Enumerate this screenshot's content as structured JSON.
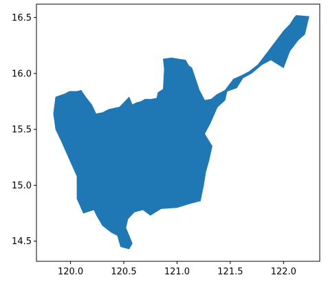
{
  "chart_data": {
    "type": "map",
    "title": "",
    "xlabel": "",
    "ylabel": "",
    "xlim": [
      119.68,
      122.34
    ],
    "ylim": [
      14.32,
      16.62
    ],
    "x_ticks": [
      120.0,
      120.5,
      121.0,
      121.5,
      122.0
    ],
    "x_tick_labels": [
      "120.0",
      "120.5",
      "121.0",
      "121.5",
      "122.0"
    ],
    "y_ticks": [
      14.5,
      15.0,
      15.5,
      16.0,
      16.5
    ],
    "y_tick_labels": [
      "14.5",
      "15.0",
      "15.5",
      "16.0",
      "16.5"
    ],
    "grid": false,
    "fill_color": "#1f77b4",
    "region_outline": [
      [
        119.86,
        15.79
      ],
      [
        119.95,
        15.82
      ],
      [
        119.99,
        15.84
      ],
      [
        120.06,
        15.84
      ],
      [
        120.1,
        15.85
      ],
      [
        120.12,
        15.82
      ],
      [
        120.15,
        15.78
      ],
      [
        120.2,
        15.72
      ],
      [
        120.24,
        15.64
      ],
      [
        120.3,
        15.65
      ],
      [
        120.36,
        15.68
      ],
      [
        120.46,
        15.7
      ],
      [
        120.5,
        15.74
      ],
      [
        120.55,
        15.79
      ],
      [
        120.58,
        15.72
      ],
      [
        120.62,
        15.74
      ],
      [
        120.66,
        15.75
      ],
      [
        120.7,
        15.77
      ],
      [
        120.76,
        15.77
      ],
      [
        120.81,
        15.78
      ],
      [
        120.82,
        15.83
      ],
      [
        120.87,
        15.86
      ],
      [
        120.88,
        16.04
      ],
      [
        120.87,
        16.13
      ],
      [
        120.95,
        16.14
      ],
      [
        121.08,
        16.12
      ],
      [
        121.11,
        16.07
      ],
      [
        121.14,
        16.05
      ],
      [
        121.21,
        15.85
      ],
      [
        121.26,
        15.76
      ],
      [
        121.32,
        15.77
      ],
      [
        121.37,
        15.81
      ],
      [
        121.45,
        15.85
      ],
      [
        121.53,
        15.95
      ],
      [
        121.6,
        15.98
      ],
      [
        121.68,
        16.02
      ],
      [
        121.76,
        16.08
      ],
      [
        121.84,
        16.18
      ],
      [
        121.92,
        16.28
      ],
      [
        122.0,
        16.38
      ],
      [
        122.06,
        16.44
      ],
      [
        122.1,
        16.5
      ],
      [
        122.12,
        16.52
      ],
      [
        122.24,
        16.51
      ],
      [
        122.22,
        16.43
      ],
      [
        122.2,
        16.35
      ],
      [
        122.14,
        16.3
      ],
      [
        122.06,
        16.2
      ],
      [
        122.0,
        16.05
      ],
      [
        121.88,
        16.12
      ],
      [
        121.8,
        16.08
      ],
      [
        121.7,
        16.0
      ],
      [
        121.62,
        15.96
      ],
      [
        121.56,
        15.87
      ],
      [
        121.47,
        15.84
      ],
      [
        121.45,
        15.76
      ],
      [
        121.38,
        15.7
      ],
      [
        121.31,
        15.55
      ],
      [
        121.26,
        15.46
      ],
      [
        121.33,
        15.35
      ],
      [
        121.3,
        15.22
      ],
      [
        121.27,
        15.12
      ],
      [
        121.25,
        15.0
      ],
      [
        121.22,
        14.86
      ],
      [
        121.14,
        14.84
      ],
      [
        121.0,
        14.8
      ],
      [
        120.85,
        14.79
      ],
      [
        120.75,
        14.73
      ],
      [
        120.68,
        14.78
      ],
      [
        120.6,
        14.76
      ],
      [
        120.54,
        14.7
      ],
      [
        120.52,
        14.62
      ],
      [
        120.58,
        14.48
      ],
      [
        120.55,
        14.43
      ],
      [
        120.47,
        14.45
      ],
      [
        120.44,
        14.55
      ],
      [
        120.38,
        14.58
      ],
      [
        120.3,
        14.64
      ],
      [
        120.25,
        14.72
      ],
      [
        120.22,
        14.78
      ],
      [
        120.12,
        14.75
      ],
      [
        120.06,
        14.88
      ],
      [
        120.06,
        15.08
      ],
      [
        119.98,
        15.25
      ],
      [
        119.92,
        15.38
      ],
      [
        119.86,
        15.5
      ],
      [
        119.84,
        15.64
      ],
      [
        119.86,
        15.79
      ]
    ]
  }
}
